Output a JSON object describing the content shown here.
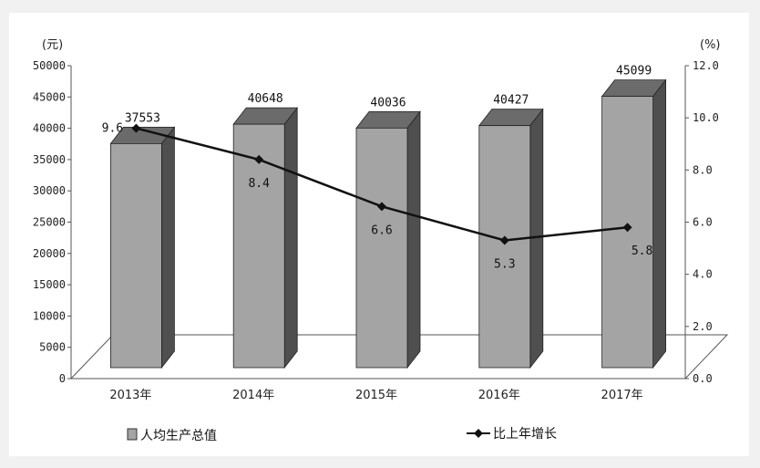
{
  "chart_data": {
    "type": "bar",
    "categories": [
      "2013年",
      "2014年",
      "2015年",
      "2016年",
      "2017年"
    ],
    "series": [
      {
        "name": "人均生产总值",
        "axis": "left",
        "kind": "bar",
        "values": [
          37553,
          40648,
          40036,
          40427,
          45099
        ],
        "labels": [
          "37553",
          "40648",
          "40036",
          "40427",
          "45099"
        ]
      },
      {
        "name": "比上年增长",
        "axis": "right",
        "kind": "line",
        "values": [
          9.6,
          8.4,
          6.6,
          5.3,
          5.8
        ],
        "labels": [
          "9.6",
          "8.4",
          "6.6",
          "5.3",
          "5.8"
        ]
      }
    ],
    "left_axis": {
      "unit": "(元)",
      "range": [
        0,
        50000
      ],
      "ticks": [
        "0",
        "5000",
        "10000",
        "15000",
        "20000",
        "25000",
        "30000",
        "35000",
        "40000",
        "45000",
        "50000"
      ]
    },
    "right_axis": {
      "unit": "(%)",
      "range": [
        0,
        12
      ],
      "ticks": [
        "0.0",
        "2.0",
        "4.0",
        "6.0",
        "8.0",
        "10.0",
        "12.0"
      ]
    },
    "legend_position": "bottom",
    "colors": {
      "bar_front": "#a4a4a4",
      "bar_side": "#4f4f4f",
      "bar_top": "#6b6b6b",
      "line": "#111111",
      "floor": "#ffffff"
    }
  }
}
